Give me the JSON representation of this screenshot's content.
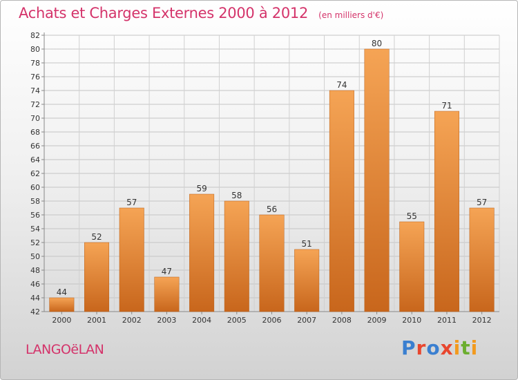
{
  "header": {
    "title": "Achats et Charges Externes 2000 à 2012",
    "subtitle": "(en milliers d'€)"
  },
  "footer": {
    "commune": "LANGOëLAN",
    "logo_text": "Proxiti",
    "logo_colors": [
      "#3a7fd0",
      "#e8462e",
      "#f29a1e",
      "#6cae2f"
    ]
  },
  "chart_data": {
    "type": "bar",
    "title": "Achats et Charges Externes 2000 à 2012",
    "categories": [
      "2000",
      "2001",
      "2002",
      "2003",
      "2004",
      "2005",
      "2006",
      "2007",
      "2008",
      "2009",
      "2010",
      "2011",
      "2012"
    ],
    "values": [
      44,
      52,
      57,
      47,
      59,
      58,
      56,
      51,
      74,
      80,
      55,
      71,
      57
    ],
    "ylim": [
      42,
      82
    ],
    "yticks": [
      42,
      44,
      46,
      48,
      50,
      52,
      54,
      56,
      58,
      60,
      62,
      64,
      66,
      68,
      70,
      72,
      74,
      76,
      78,
      80,
      82
    ],
    "grid": true,
    "bar_color_top": "#f5a455",
    "bar_color_bottom": "#c8661c",
    "xlabel": "",
    "ylabel": ""
  }
}
